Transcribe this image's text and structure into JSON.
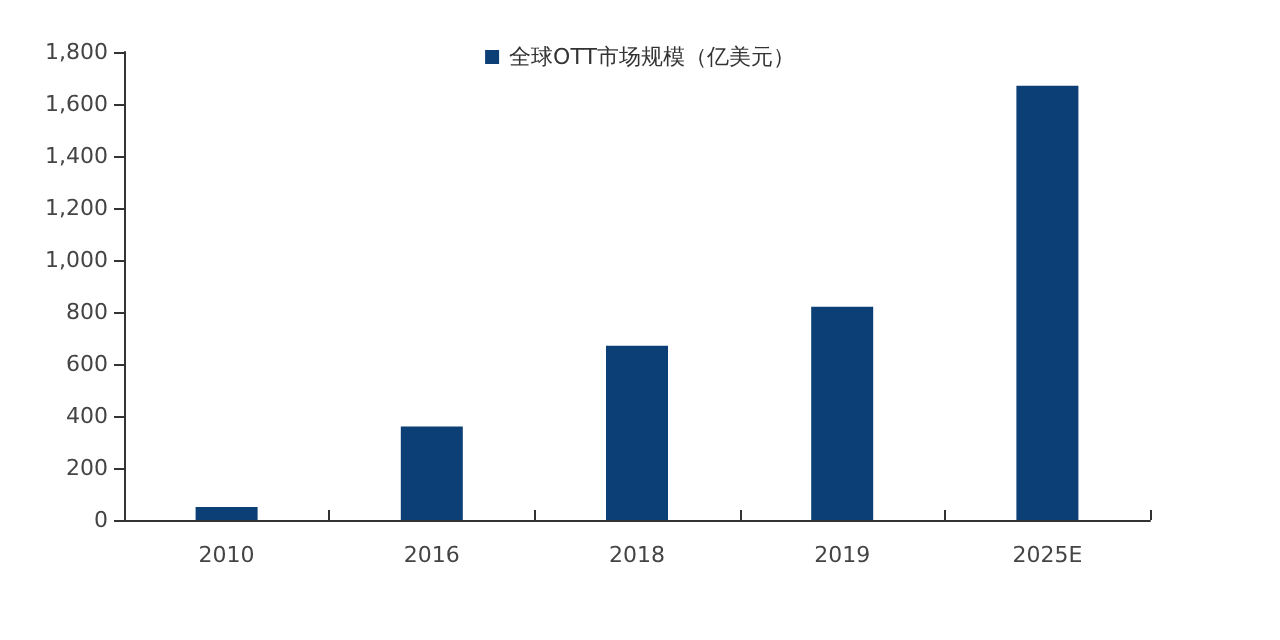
{
  "chart_data": {
    "type": "bar",
    "categories": [
      "2010",
      "2016",
      "2018",
      "2019",
      "2025E"
    ],
    "series": [
      {
        "name": "全球OTT市场规模（亿美元）",
        "color": "#0b3f75",
        "values": [
          50,
          360,
          670,
          820,
          1670
        ]
      }
    ],
    "ylim": [
      0,
      1800
    ],
    "yticks": [
      0,
      200,
      400,
      600,
      800,
      {
        "value": 1000,
        "label": "1,000"
      },
      {
        "value": 1200,
        "label": "1,200"
      },
      {
        "value": 1400,
        "label": "1,400"
      },
      {
        "value": 1600,
        "label": "1,600"
      },
      {
        "value": 1800,
        "label": "1,800"
      }
    ],
    "grid": false,
    "legend": "top"
  }
}
